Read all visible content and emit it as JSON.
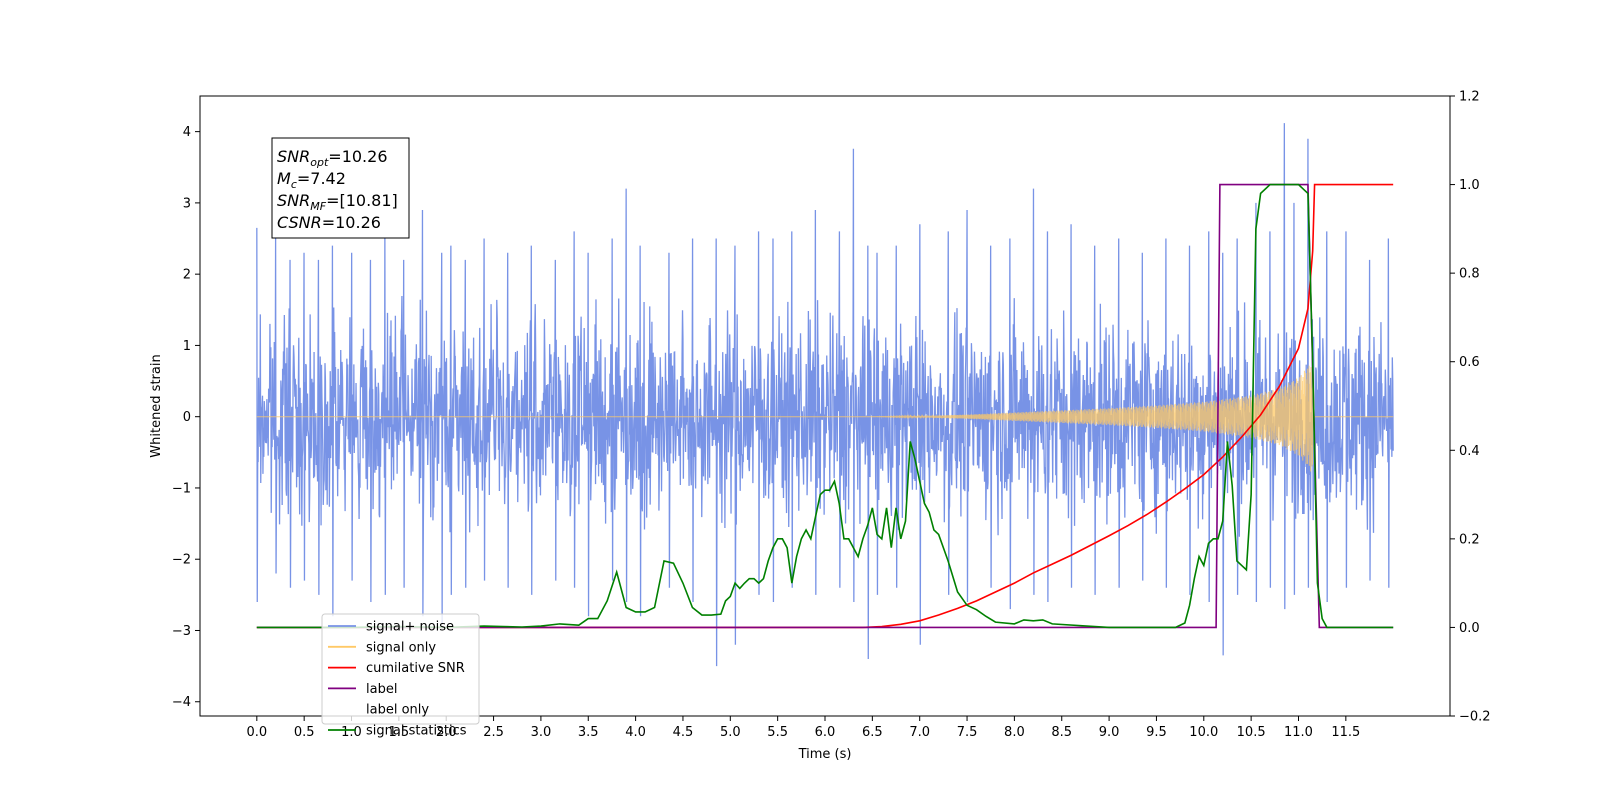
{
  "chart_data": {
    "type": "line",
    "xlabel": "Time (s)",
    "ylabel": "Whitened strain",
    "ylabel_right": "",
    "xlim": [
      -0.6,
      12.6
    ],
    "ylim": [
      -4.2,
      4.5
    ],
    "ylim_right": [
      -0.2,
      1.2
    ],
    "x_ticks": [
      0.0,
      0.5,
      1.0,
      1.5,
      2.0,
      2.5,
      3.0,
      3.5,
      4.0,
      4.5,
      5.0,
      5.5,
      6.0,
      6.5,
      7.0,
      7.5,
      8.0,
      8.5,
      9.0,
      9.5,
      10.0,
      10.5,
      11.0,
      11.5
    ],
    "x_tick_labels": [
      "0.0",
      "0.5",
      "1.0",
      "1.5",
      "2.0",
      "2.5",
      "3.0",
      "3.5",
      "4.0",
      "4.5",
      "5.0",
      "5.5",
      "6.0",
      "6.5",
      "7.0",
      "7.5",
      "8.0",
      "8.5",
      "9.0",
      "9.5",
      "10.0",
      "10.5",
      "11.0",
      "11.5"
    ],
    "y_ticks": [
      -4,
      -3,
      -2,
      -1,
      0,
      1,
      2,
      3,
      4
    ],
    "y_tick_labels": [
      "−4",
      "−3",
      "−2",
      "−1",
      "0",
      "1",
      "2",
      "3",
      "4"
    ],
    "y_ticks_right": [
      -0.2,
      0.0,
      0.2,
      0.4,
      0.6,
      0.8,
      1.0,
      1.2
    ],
    "y_tick_labels_right": [
      "−0.2",
      "0.0",
      "0.2",
      "0.4",
      "0.6",
      "0.8",
      "1.0",
      "1.2"
    ],
    "grid": false,
    "legend_position": "lower-left",
    "annotation": {
      "lines": [
        {
          "sym": "SNR",
          "sub": "opt",
          "text": "=10.26"
        },
        {
          "sym": "M",
          "sub": "c",
          "text": "=7.42"
        },
        {
          "sym": "SNR",
          "sub": "MF",
          "text": "=[10.81]"
        },
        {
          "sym": "CSNR",
          "sub": "",
          "text": "=10.26"
        }
      ]
    },
    "series": [
      {
        "name": "signal+ noise",
        "axis": "left",
        "color": "#7893e6",
        "kind": "noise",
        "x_range": [
          0.0,
          12.0
        ],
        "envelope_typical": [
          -1.7,
          1.7
        ],
        "spike_x": [
          0.0,
          0.2,
          0.35,
          0.5,
          0.65,
          0.8,
          1.0,
          1.2,
          1.35,
          1.55,
          1.75,
          1.95,
          2.05,
          2.2,
          2.4,
          2.65,
          2.9,
          3.15,
          3.35,
          3.5,
          3.75,
          3.9,
          4.05,
          4.35,
          4.6,
          4.85,
          5.05,
          5.3,
          5.45,
          5.65,
          5.9,
          6.15,
          6.3,
          6.45,
          6.55,
          6.75,
          7.0,
          7.3,
          7.5,
          7.75,
          7.95,
          8.2,
          8.35,
          8.6,
          8.85,
          9.1,
          9.35,
          9.6,
          9.85,
          10.05,
          10.2,
          10.35,
          10.55,
          10.7,
          10.85,
          10.95,
          11.1,
          11.3,
          11.5,
          11.75,
          11.95
        ],
        "spike_hi": [
          2.65,
          2.5,
          2.2,
          2.3,
          2.2,
          2.4,
          2.3,
          2.2,
          2.6,
          2.2,
          2.9,
          2.3,
          2.4,
          2.2,
          2.5,
          2.3,
          2.4,
          2.2,
          2.6,
          2.3,
          2.5,
          3.2,
          2.4,
          2.3,
          2.5,
          2.5,
          2.4,
          2.6,
          2.5,
          2.6,
          2.9,
          2.6,
          3.76,
          2.4,
          2.3,
          2.4,
          2.7,
          2.6,
          2.9,
          2.4,
          2.5,
          3.2,
          2.6,
          2.7,
          2.4,
          2.5,
          2.3,
          2.5,
          2.4,
          2.6,
          2.3,
          2.5,
          3.0,
          2.6,
          4.12,
          3.0,
          3.9,
          2.6,
          2.6,
          2.2,
          2.5
        ],
        "spike_lo": [
          -2.6,
          -2.2,
          -2.4,
          -2.3,
          -2.5,
          -2.8,
          -2.3,
          -2.6,
          -2.5,
          -2.4,
          -2.8,
          -2.9,
          -2.5,
          -2.4,
          -2.3,
          -2.4,
          -2.5,
          -2.3,
          -2.4,
          -2.8,
          -2.3,
          -2.6,
          -2.8,
          -2.4,
          -2.6,
          -3.5,
          -3.2,
          -2.5,
          -2.6,
          -2.4,
          -2.5,
          -2.4,
          -2.6,
          -3.4,
          -2.5,
          -2.4,
          -3.2,
          -2.5,
          -2.6,
          -2.4,
          -2.7,
          -2.5,
          -2.6,
          -2.4,
          -2.5,
          -2.4,
          -2.3,
          -2.4,
          -2.5,
          -2.6,
          -3.35,
          -2.5,
          -2.6,
          -2.4,
          -2.7,
          -2.5,
          -2.4,
          -2.6,
          -2.4,
          -2.3,
          -2.4
        ]
      },
      {
        "name": "signal only",
        "axis": "left",
        "color": "#ffc966",
        "kind": "chirp",
        "x_range": [
          0.0,
          12.0
        ],
        "cutoff_x": 11.15,
        "envelope_x": [
          0.0,
          6.5,
          7.0,
          7.5,
          8.0,
          8.5,
          9.0,
          9.5,
          10.0,
          10.5,
          10.8,
          11.0,
          11.1,
          11.14
        ],
        "envelope_amp": [
          0.0,
          0.0,
          0.01,
          0.03,
          0.06,
          0.09,
          0.12,
          0.16,
          0.21,
          0.3,
          0.4,
          0.55,
          0.7,
          0.8
        ]
      },
      {
        "name": "cumilative SNR",
        "axis": "right",
        "color": "#ff0000",
        "x": [
          0.0,
          6.4,
          6.6,
          6.8,
          7.0,
          7.2,
          7.4,
          7.6,
          7.8,
          8.0,
          8.2,
          8.4,
          8.6,
          8.8,
          9.0,
          9.2,
          9.4,
          9.6,
          9.8,
          10.0,
          10.2,
          10.4,
          10.6,
          10.8,
          11.0,
          11.1,
          11.15,
          11.17,
          12.0
        ],
        "y": [
          0.0,
          0.0,
          0.002,
          0.007,
          0.015,
          0.028,
          0.043,
          0.06,
          0.08,
          0.1,
          0.123,
          0.143,
          0.163,
          0.185,
          0.207,
          0.23,
          0.255,
          0.283,
          0.313,
          0.345,
          0.385,
          0.43,
          0.48,
          0.545,
          0.63,
          0.72,
          0.85,
          1.0,
          1.0
        ]
      },
      {
        "name": "label",
        "axis": "right",
        "color": "#800080",
        "x": [
          0.0,
          10.13,
          10.17,
          11.1,
          11.22,
          12.0
        ],
        "y": [
          0.0,
          0.0,
          1.0,
          1.0,
          0.0,
          0.0
        ]
      },
      {
        "name": "label only",
        "axis": "right",
        "color": "#ffffff",
        "x": [],
        "y": []
      },
      {
        "name": "signal statistics",
        "axis": "right",
        "color": "#008000",
        "x": [
          0.0,
          0.5,
          1.0,
          1.5,
          2.0,
          2.4,
          2.6,
          2.8,
          3.0,
          3.2,
          3.4,
          3.5,
          3.6,
          3.7,
          3.8,
          3.9,
          4.0,
          4.1,
          4.2,
          4.3,
          4.4,
          4.5,
          4.6,
          4.7,
          4.8,
          4.9,
          4.95,
          5.0,
          5.05,
          5.1,
          5.15,
          5.2,
          5.25,
          5.3,
          5.35,
          5.4,
          5.45,
          5.5,
          5.55,
          5.6,
          5.65,
          5.7,
          5.75,
          5.8,
          5.85,
          5.9,
          5.95,
          6.0,
          6.05,
          6.1,
          6.15,
          6.2,
          6.25,
          6.3,
          6.35,
          6.4,
          6.45,
          6.5,
          6.55,
          6.6,
          6.65,
          6.7,
          6.75,
          6.8,
          6.85,
          6.9,
          6.95,
          7.0,
          7.05,
          7.1,
          7.15,
          7.2,
          7.3,
          7.4,
          7.5,
          7.6,
          7.7,
          7.8,
          8.0,
          8.1,
          8.2,
          8.3,
          8.4,
          9.0,
          9.4,
          9.5,
          9.6,
          9.7,
          9.8,
          9.85,
          9.9,
          9.95,
          10.0,
          10.05,
          10.1,
          10.15,
          10.2,
          10.25,
          10.3,
          10.35,
          10.4,
          10.45,
          10.5,
          10.55,
          10.6,
          10.65,
          10.7,
          10.8,
          10.9,
          11.0,
          11.1,
          11.15,
          11.2,
          11.25,
          11.3,
          12.0
        ],
        "y": [
          0.0,
          0.0,
          0.0,
          0.002,
          0.0,
          0.003,
          0.002,
          0.001,
          0.003,
          0.008,
          0.005,
          0.02,
          0.02,
          0.06,
          0.125,
          0.045,
          0.035,
          0.035,
          0.045,
          0.15,
          0.145,
          0.1,
          0.045,
          0.028,
          0.028,
          0.03,
          0.06,
          0.07,
          0.1,
          0.088,
          0.1,
          0.11,
          0.11,
          0.1,
          0.11,
          0.15,
          0.18,
          0.2,
          0.2,
          0.18,
          0.1,
          0.16,
          0.2,
          0.22,
          0.2,
          0.25,
          0.3,
          0.31,
          0.31,
          0.33,
          0.28,
          0.2,
          0.2,
          0.18,
          0.16,
          0.2,
          0.23,
          0.27,
          0.21,
          0.2,
          0.27,
          0.18,
          0.27,
          0.2,
          0.24,
          0.42,
          0.38,
          0.33,
          0.28,
          0.26,
          0.22,
          0.21,
          0.15,
          0.08,
          0.05,
          0.04,
          0.025,
          0.012,
          0.008,
          0.017,
          0.015,
          0.017,
          0.008,
          0.0,
          0.0,
          0.0,
          0.0,
          0.0,
          0.01,
          0.05,
          0.11,
          0.16,
          0.14,
          0.19,
          0.2,
          0.2,
          0.24,
          0.42,
          0.32,
          0.15,
          0.14,
          0.13,
          0.3,
          0.9,
          0.98,
          0.99,
          1.0,
          1.0,
          1.0,
          1.0,
          0.98,
          0.6,
          0.1,
          0.02,
          0.0,
          0.0
        ]
      }
    ]
  }
}
